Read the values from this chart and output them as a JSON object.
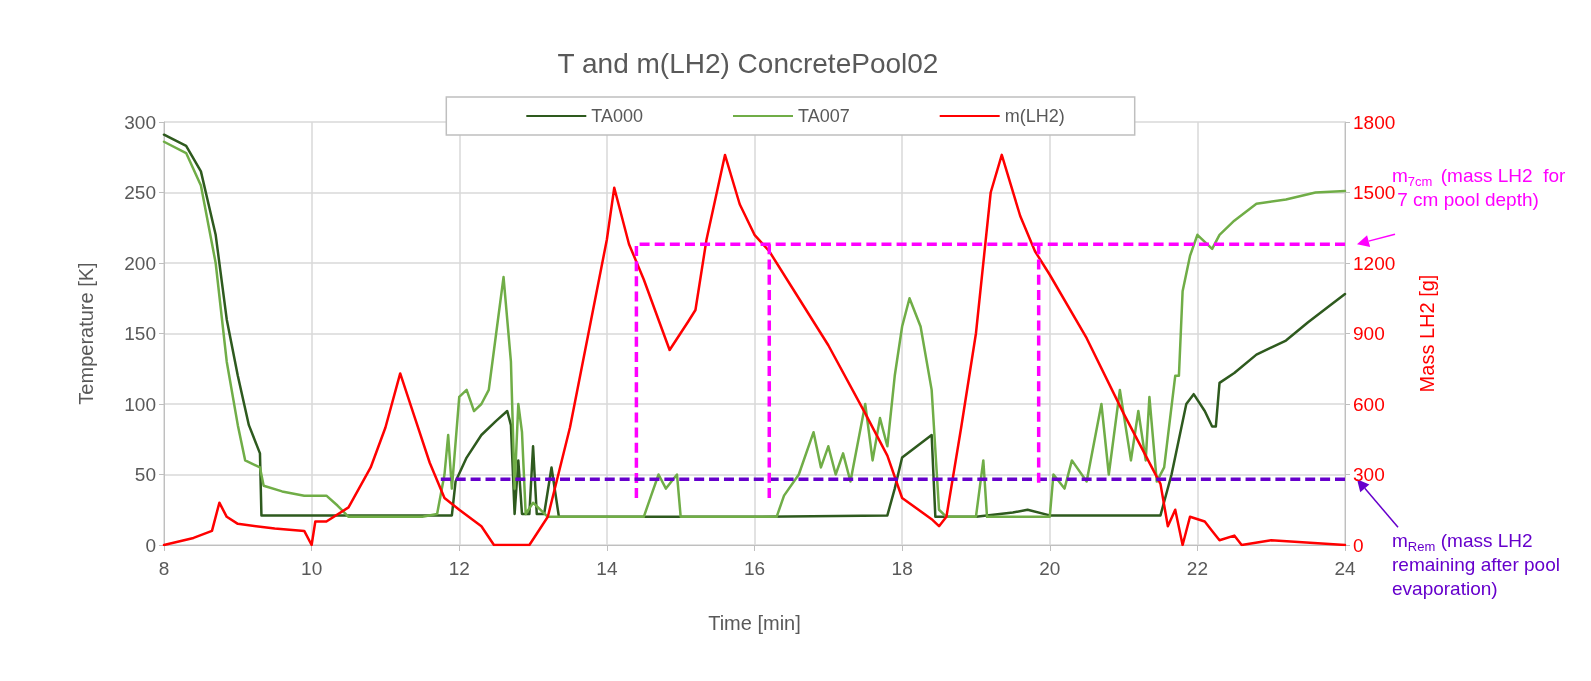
{
  "chart_data": {
    "type": "line",
    "title": "T and m(LH2) ConcretePool02",
    "xlabel": "Time [min]",
    "ylabel": "Temperature [K]",
    "y2label": "Mass LH2 [g]",
    "xlim": [
      8,
      24
    ],
    "xticks": [
      8,
      10,
      12,
      14,
      16,
      18,
      20,
      22,
      24
    ],
    "ylim": [
      0,
      300
    ],
    "yticks": [
      0,
      50,
      100,
      150,
      200,
      250,
      300
    ],
    "y2lim": [
      0,
      1800
    ],
    "y2ticks": [
      0,
      300,
      600,
      900,
      1200,
      1500,
      1800
    ],
    "grid": true,
    "legend": "top",
    "marker": "none",
    "series": [
      {
        "name": "TA000",
        "color": "#2e5a1e",
        "line_style": "solid",
        "x": [
          8,
          8.3,
          8.5,
          8.7,
          8.85,
          9.0,
          9.15,
          9.3,
          9.32,
          10,
          11,
          11.9,
          11.95,
          12.1,
          12.3,
          12.5,
          12.65,
          12.7,
          12.75,
          12.8,
          12.85,
          12.95,
          13.0,
          13.05,
          13.15,
          13.25,
          13.35,
          14,
          16,
          17.8,
          17.9,
          18.0,
          18.2,
          18.4,
          18.45,
          19,
          19.5,
          19.7,
          20,
          21,
          21.5,
          21.65,
          21.75,
          21.85,
          21.95,
          22.1,
          22.2,
          22.25,
          22.3,
          22.5,
          22.8,
          23.2,
          23.5,
          23.8,
          24
        ],
        "values": [
          291,
          283,
          265,
          220,
          160,
          120,
          85,
          65,
          21,
          21,
          21,
          21,
          45,
          62,
          78,
          88,
          95,
          85,
          22,
          60,
          22,
          22,
          70,
          22,
          22,
          55,
          20,
          20,
          20,
          21,
          40,
          62,
          70,
          78,
          20,
          20,
          23,
          25,
          21,
          21,
          21,
          50,
          75,
          100,
          107,
          95,
          84,
          84,
          115,
          122,
          135,
          145,
          158,
          170,
          178
        ]
      },
      {
        "name": "TA007",
        "color": "#70ad47",
        "line_style": "solid",
        "x": [
          8,
          8.3,
          8.5,
          8.7,
          8.85,
          9.0,
          9.1,
          9.3,
          9.35,
          9.6,
          9.9,
          10.2,
          10.35,
          10.5,
          11,
          11.5,
          11.7,
          11.8,
          11.85,
          11.9,
          12.0,
          12.1,
          12.2,
          12.3,
          12.4,
          12.5,
          12.6,
          12.7,
          12.75,
          12.8,
          12.85,
          12.9,
          13.0,
          13.2,
          14,
          14.5,
          14.6,
          14.7,
          14.8,
          14.95,
          15.0,
          15.5,
          16.3,
          16.4,
          16.6,
          16.8,
          16.9,
          17.0,
          17.1,
          17.2,
          17.3,
          17.5,
          17.6,
          17.7,
          17.8,
          17.9,
          18.0,
          18.1,
          18.25,
          18.4,
          18.5,
          18.6,
          19.0,
          19.1,
          19.15,
          19.5,
          20.0,
          20.05,
          20.2,
          20.3,
          20.5,
          20.7,
          20.8,
          20.95,
          21.1,
          21.2,
          21.3,
          21.35,
          21.45,
          21.55,
          21.7,
          21.75,
          21.8,
          21.9,
          22.0,
          22.2,
          22.3,
          22.5,
          22.8,
          23.2,
          23.6,
          24
        ],
        "values": [
          286,
          278,
          255,
          200,
          130,
          85,
          60,
          55,
          42,
          38,
          35,
          35,
          28,
          20,
          20,
          20,
          22,
          50,
          78,
          40,
          105,
          110,
          95,
          100,
          110,
          150,
          190,
          130,
          40,
          100,
          80,
          22,
          30,
          20,
          20,
          20,
          35,
          50,
          40,
          50,
          20,
          20,
          20,
          35,
          50,
          80,
          55,
          70,
          50,
          65,
          45,
          100,
          60,
          90,
          70,
          120,
          155,
          175,
          155,
          110,
          25,
          20,
          20,
          60,
          20,
          20,
          20,
          50,
          40,
          60,
          45,
          100,
          50,
          110,
          60,
          95,
          60,
          105,
          45,
          55,
          120,
          120,
          180,
          205,
          220,
          210,
          220,
          230,
          242,
          245,
          250,
          251
        ]
      },
      {
        "name": "m(LH2)",
        "color": "#ff0000",
        "axis": "y2",
        "line_style": "solid",
        "x": [
          8,
          8.4,
          8.65,
          8.75,
          8.85,
          9,
          9.5,
          9.9,
          10.0,
          10.05,
          10.2,
          10.5,
          10.8,
          11.0,
          11.2,
          11.4,
          11.6,
          11.8,
          12.0,
          12.3,
          12.47,
          12.95,
          13.2,
          13.5,
          13.75,
          14.0,
          14.1,
          14.3,
          14.5,
          14.85,
          15.1,
          15.2,
          15.35,
          15.6,
          15.8,
          16.0,
          16.2,
          16.5,
          17.0,
          17.5,
          17.8,
          18.0,
          18.4,
          18.5,
          18.6,
          18.8,
          19.0,
          19.2,
          19.35,
          19.6,
          19.8,
          20.0,
          20.5,
          21.0,
          21.3,
          21.5,
          21.6,
          21.7,
          21.8,
          21.9,
          22.1,
          22.2,
          22.3,
          22.5,
          22.6,
          23,
          24
        ],
        "values": [
          0,
          30,
          60,
          180,
          120,
          90,
          70,
          60,
          0,
          100,
          100,
          160,
          330,
          500,
          730,
          540,
          350,
          200,
          150,
          80,
          0,
          0,
          120,
          500,
          900,
          1300,
          1520,
          1280,
          1130,
          830,
          950,
          1000,
          1300,
          1660,
          1450,
          1320,
          1250,
          1100,
          850,
          560,
          380,
          200,
          110,
          80,
          120,
          500,
          900,
          1500,
          1660,
          1400,
          1250,
          1150,
          880,
          560,
          380,
          260,
          80,
          150,
          0,
          120,
          100,
          60,
          20,
          40,
          0,
          20,
          0
        ]
      },
      {
        "color": "#ff00ff",
        "axis": "y2",
        "line_style": "dashed",
        "x": [
          14.4,
          14.4,
          24
        ],
        "values": [
          200,
          1280,
          1280
        ]
      },
      {
        "color": "#6600cc",
        "axis": "y2",
        "line_style": "dashed",
        "x": [
          11.75,
          24
        ],
        "values": [
          280,
          280
        ]
      },
      {
        "color": "#ff00ff",
        "axis": "y2",
        "line_style": "dashed",
        "x": [
          16.2,
          16.2
        ],
        "values": [
          1280,
          200
        ]
      },
      {
        "color": "#ff00ff",
        "axis": "y2",
        "line_style": "dashed",
        "x": [
          19.85,
          19.85
        ],
        "values": [
          1280,
          265
        ]
      }
    ],
    "annotations": [
      "m$_{7cm}$ (mass LH2  for 7 cm pool depth)",
      "m$_{Rem}$ (mass LH2 remaining after pool evaporation)"
    ]
  }
}
